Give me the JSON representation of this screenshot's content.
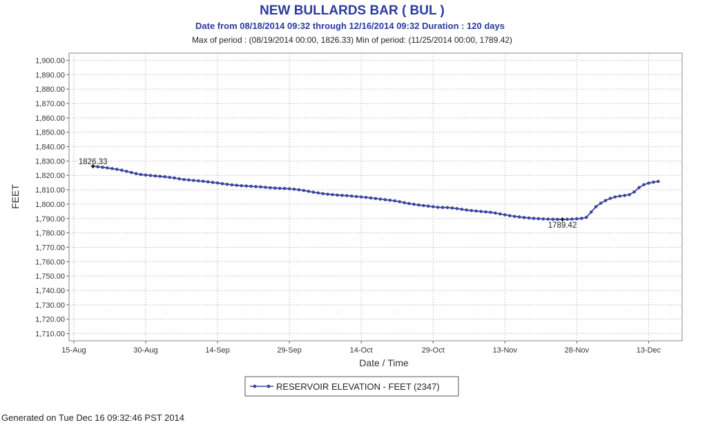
{
  "chart_data": {
    "type": "line",
    "title": "NEW BULLARDS BAR ( BUL )",
    "subtitle": "Date from 08/18/2014 09:32 through 12/16/2014 09:32 Duration : 120 days",
    "subtitle2": "Max of period : (08/19/2014 00:00, 1826.33)  Min of period: (11/25/2014 00:00,  1789.42)",
    "xlabel": "Date / Time",
    "ylabel": "FEET",
    "ylim": [
      1705,
      1905
    ],
    "xlim": [
      "2014-08-14",
      "2014-12-20"
    ],
    "y_ticks": [
      "1,710.00",
      "1,720.00",
      "1,730.00",
      "1,740.00",
      "1,750.00",
      "1,760.00",
      "1,770.00",
      "1,780.00",
      "1,790.00",
      "1,800.00",
      "1,810.00",
      "1,820.00",
      "1,830.00",
      "1,840.00",
      "1,850.00",
      "1,860.00",
      "1,870.00",
      "1,880.00",
      "1,890.00",
      "1,900.00"
    ],
    "x_ticks": [
      {
        "label": "15-Aug",
        "date": "2014-08-15"
      },
      {
        "label": "30-Aug",
        "date": "2014-08-30"
      },
      {
        "label": "14-Sep",
        "date": "2014-09-14"
      },
      {
        "label": "29-Sep",
        "date": "2014-09-29"
      },
      {
        "label": "14-Oct",
        "date": "2014-10-14"
      },
      {
        "label": "29-Oct",
        "date": "2014-10-29"
      },
      {
        "label": "13-Nov",
        "date": "2014-11-13"
      },
      {
        "label": "28-Nov",
        "date": "2014-11-28"
      },
      {
        "label": "13-Dec",
        "date": "2014-12-13"
      }
    ],
    "grid": true,
    "color": "#3c46a0",
    "series": [
      {
        "name": "RESERVOIR ELEVATION - FEET (2347)",
        "points": [
          [
            "2014-08-19",
            1826.33
          ],
          [
            "2014-08-20",
            1826.0
          ],
          [
            "2014-08-21",
            1825.6
          ],
          [
            "2014-08-22",
            1825.2
          ],
          [
            "2014-08-23",
            1824.7
          ],
          [
            "2014-08-24",
            1824.2
          ],
          [
            "2014-08-25",
            1823.6
          ],
          [
            "2014-08-26",
            1822.8
          ],
          [
            "2014-08-27",
            1822.0
          ],
          [
            "2014-08-28",
            1821.2
          ],
          [
            "2014-08-29",
            1820.6
          ],
          [
            "2014-08-30",
            1820.2
          ],
          [
            "2014-08-31",
            1819.9
          ],
          [
            "2014-09-01",
            1819.6
          ],
          [
            "2014-09-02",
            1819.3
          ],
          [
            "2014-09-03",
            1819.0
          ],
          [
            "2014-09-04",
            1818.6
          ],
          [
            "2014-09-05",
            1818.2
          ],
          [
            "2014-09-06",
            1817.6
          ],
          [
            "2014-09-07",
            1817.1
          ],
          [
            "2014-09-08",
            1816.8
          ],
          [
            "2014-09-09",
            1816.5
          ],
          [
            "2014-09-10",
            1816.2
          ],
          [
            "2014-09-11",
            1815.9
          ],
          [
            "2014-09-12",
            1815.5
          ],
          [
            "2014-09-13",
            1815.1
          ],
          [
            "2014-09-14",
            1814.7
          ],
          [
            "2014-09-15",
            1814.2
          ],
          [
            "2014-09-16",
            1813.8
          ],
          [
            "2014-09-17",
            1813.4
          ],
          [
            "2014-09-18",
            1813.1
          ],
          [
            "2014-09-19",
            1812.8
          ],
          [
            "2014-09-20",
            1812.6
          ],
          [
            "2014-09-21",
            1812.4
          ],
          [
            "2014-09-22",
            1812.2
          ],
          [
            "2014-09-23",
            1812.0
          ],
          [
            "2014-09-24",
            1811.7
          ],
          [
            "2014-09-25",
            1811.4
          ],
          [
            "2014-09-26",
            1811.2
          ],
          [
            "2014-09-27",
            1811.0
          ],
          [
            "2014-09-28",
            1810.9
          ],
          [
            "2014-09-29",
            1810.7
          ],
          [
            "2014-09-30",
            1810.4
          ],
          [
            "2014-10-01",
            1810.0
          ],
          [
            "2014-10-02",
            1809.5
          ],
          [
            "2014-10-03",
            1808.9
          ],
          [
            "2014-10-04",
            1808.3
          ],
          [
            "2014-10-05",
            1807.8
          ],
          [
            "2014-10-06",
            1807.3
          ],
          [
            "2014-10-07",
            1806.9
          ],
          [
            "2014-10-08",
            1806.6
          ],
          [
            "2014-10-09",
            1806.3
          ],
          [
            "2014-10-10",
            1806.1
          ],
          [
            "2014-10-11",
            1805.9
          ],
          [
            "2014-10-12",
            1805.6
          ],
          [
            "2014-10-13",
            1805.3
          ],
          [
            "2014-10-14",
            1805.0
          ],
          [
            "2014-10-15",
            1804.7
          ],
          [
            "2014-10-16",
            1804.3
          ],
          [
            "2014-10-17",
            1803.9
          ],
          [
            "2014-10-18",
            1803.5
          ],
          [
            "2014-10-19",
            1803.1
          ],
          [
            "2014-10-20",
            1802.7
          ],
          [
            "2014-10-21",
            1802.3
          ],
          [
            "2014-10-22",
            1801.7
          ],
          [
            "2014-10-23",
            1801.0
          ],
          [
            "2014-10-24",
            1800.4
          ],
          [
            "2014-10-25",
            1799.9
          ],
          [
            "2014-10-26",
            1799.4
          ],
          [
            "2014-10-27",
            1799.0
          ],
          [
            "2014-10-28",
            1798.6
          ],
          [
            "2014-10-29",
            1798.2
          ],
          [
            "2014-10-30",
            1797.8
          ],
          [
            "2014-10-31",
            1797.7
          ],
          [
            "2014-11-01",
            1797.6
          ],
          [
            "2014-11-02",
            1797.3
          ],
          [
            "2014-11-03",
            1796.9
          ],
          [
            "2014-11-04",
            1796.4
          ],
          [
            "2014-11-05",
            1795.9
          ],
          [
            "2014-11-06",
            1795.5
          ],
          [
            "2014-11-07",
            1795.2
          ],
          [
            "2014-11-08",
            1794.9
          ],
          [
            "2014-11-09",
            1794.6
          ],
          [
            "2014-11-10",
            1794.3
          ],
          [
            "2014-11-11",
            1793.8
          ],
          [
            "2014-11-12",
            1793.2
          ],
          [
            "2014-11-13",
            1792.6
          ],
          [
            "2014-11-14",
            1792.0
          ],
          [
            "2014-11-15",
            1791.5
          ],
          [
            "2014-11-16",
            1791.1
          ],
          [
            "2014-11-17",
            1790.7
          ],
          [
            "2014-11-18",
            1790.4
          ],
          [
            "2014-11-19",
            1790.1
          ],
          [
            "2014-11-20",
            1789.9
          ],
          [
            "2014-11-21",
            1789.7
          ],
          [
            "2014-11-22",
            1789.6
          ],
          [
            "2014-11-23",
            1789.5
          ],
          [
            "2014-11-24",
            1789.45
          ],
          [
            "2014-11-25",
            1789.42
          ],
          [
            "2014-11-26",
            1789.5
          ],
          [
            "2014-11-27",
            1789.6
          ],
          [
            "2014-11-28",
            1789.8
          ],
          [
            "2014-11-29",
            1790.1
          ],
          [
            "2014-11-30",
            1790.8
          ],
          [
            "2014-12-01",
            1794.5
          ],
          [
            "2014-12-02",
            1798.2
          ],
          [
            "2014-12-03",
            1800.6
          ],
          [
            "2014-12-04",
            1802.5
          ],
          [
            "2014-12-05",
            1804.0
          ],
          [
            "2014-12-06",
            1805.0
          ],
          [
            "2014-12-07",
            1805.6
          ],
          [
            "2014-12-08",
            1806.0
          ],
          [
            "2014-12-09",
            1806.6
          ],
          [
            "2014-12-10",
            1808.5
          ],
          [
            "2014-12-11",
            1811.5
          ],
          [
            "2014-12-12",
            1813.5
          ],
          [
            "2014-12-13",
            1814.6
          ],
          [
            "2014-12-14",
            1815.3
          ],
          [
            "2014-12-15",
            1815.8
          ]
        ]
      }
    ],
    "annotations": [
      {
        "label": "1826.33",
        "date": "2014-08-19",
        "value": 1826.33,
        "placement": "above"
      },
      {
        "label": "1789.42",
        "date": "2014-11-25",
        "value": 1789.42,
        "placement": "below"
      }
    ],
    "legend": {
      "label": "RESERVOIR ELEVATION - FEET (2347)",
      "placement": "bottom-center"
    }
  },
  "footer": "Generated on Tue Dec 16 09:32:46 PST 2014"
}
